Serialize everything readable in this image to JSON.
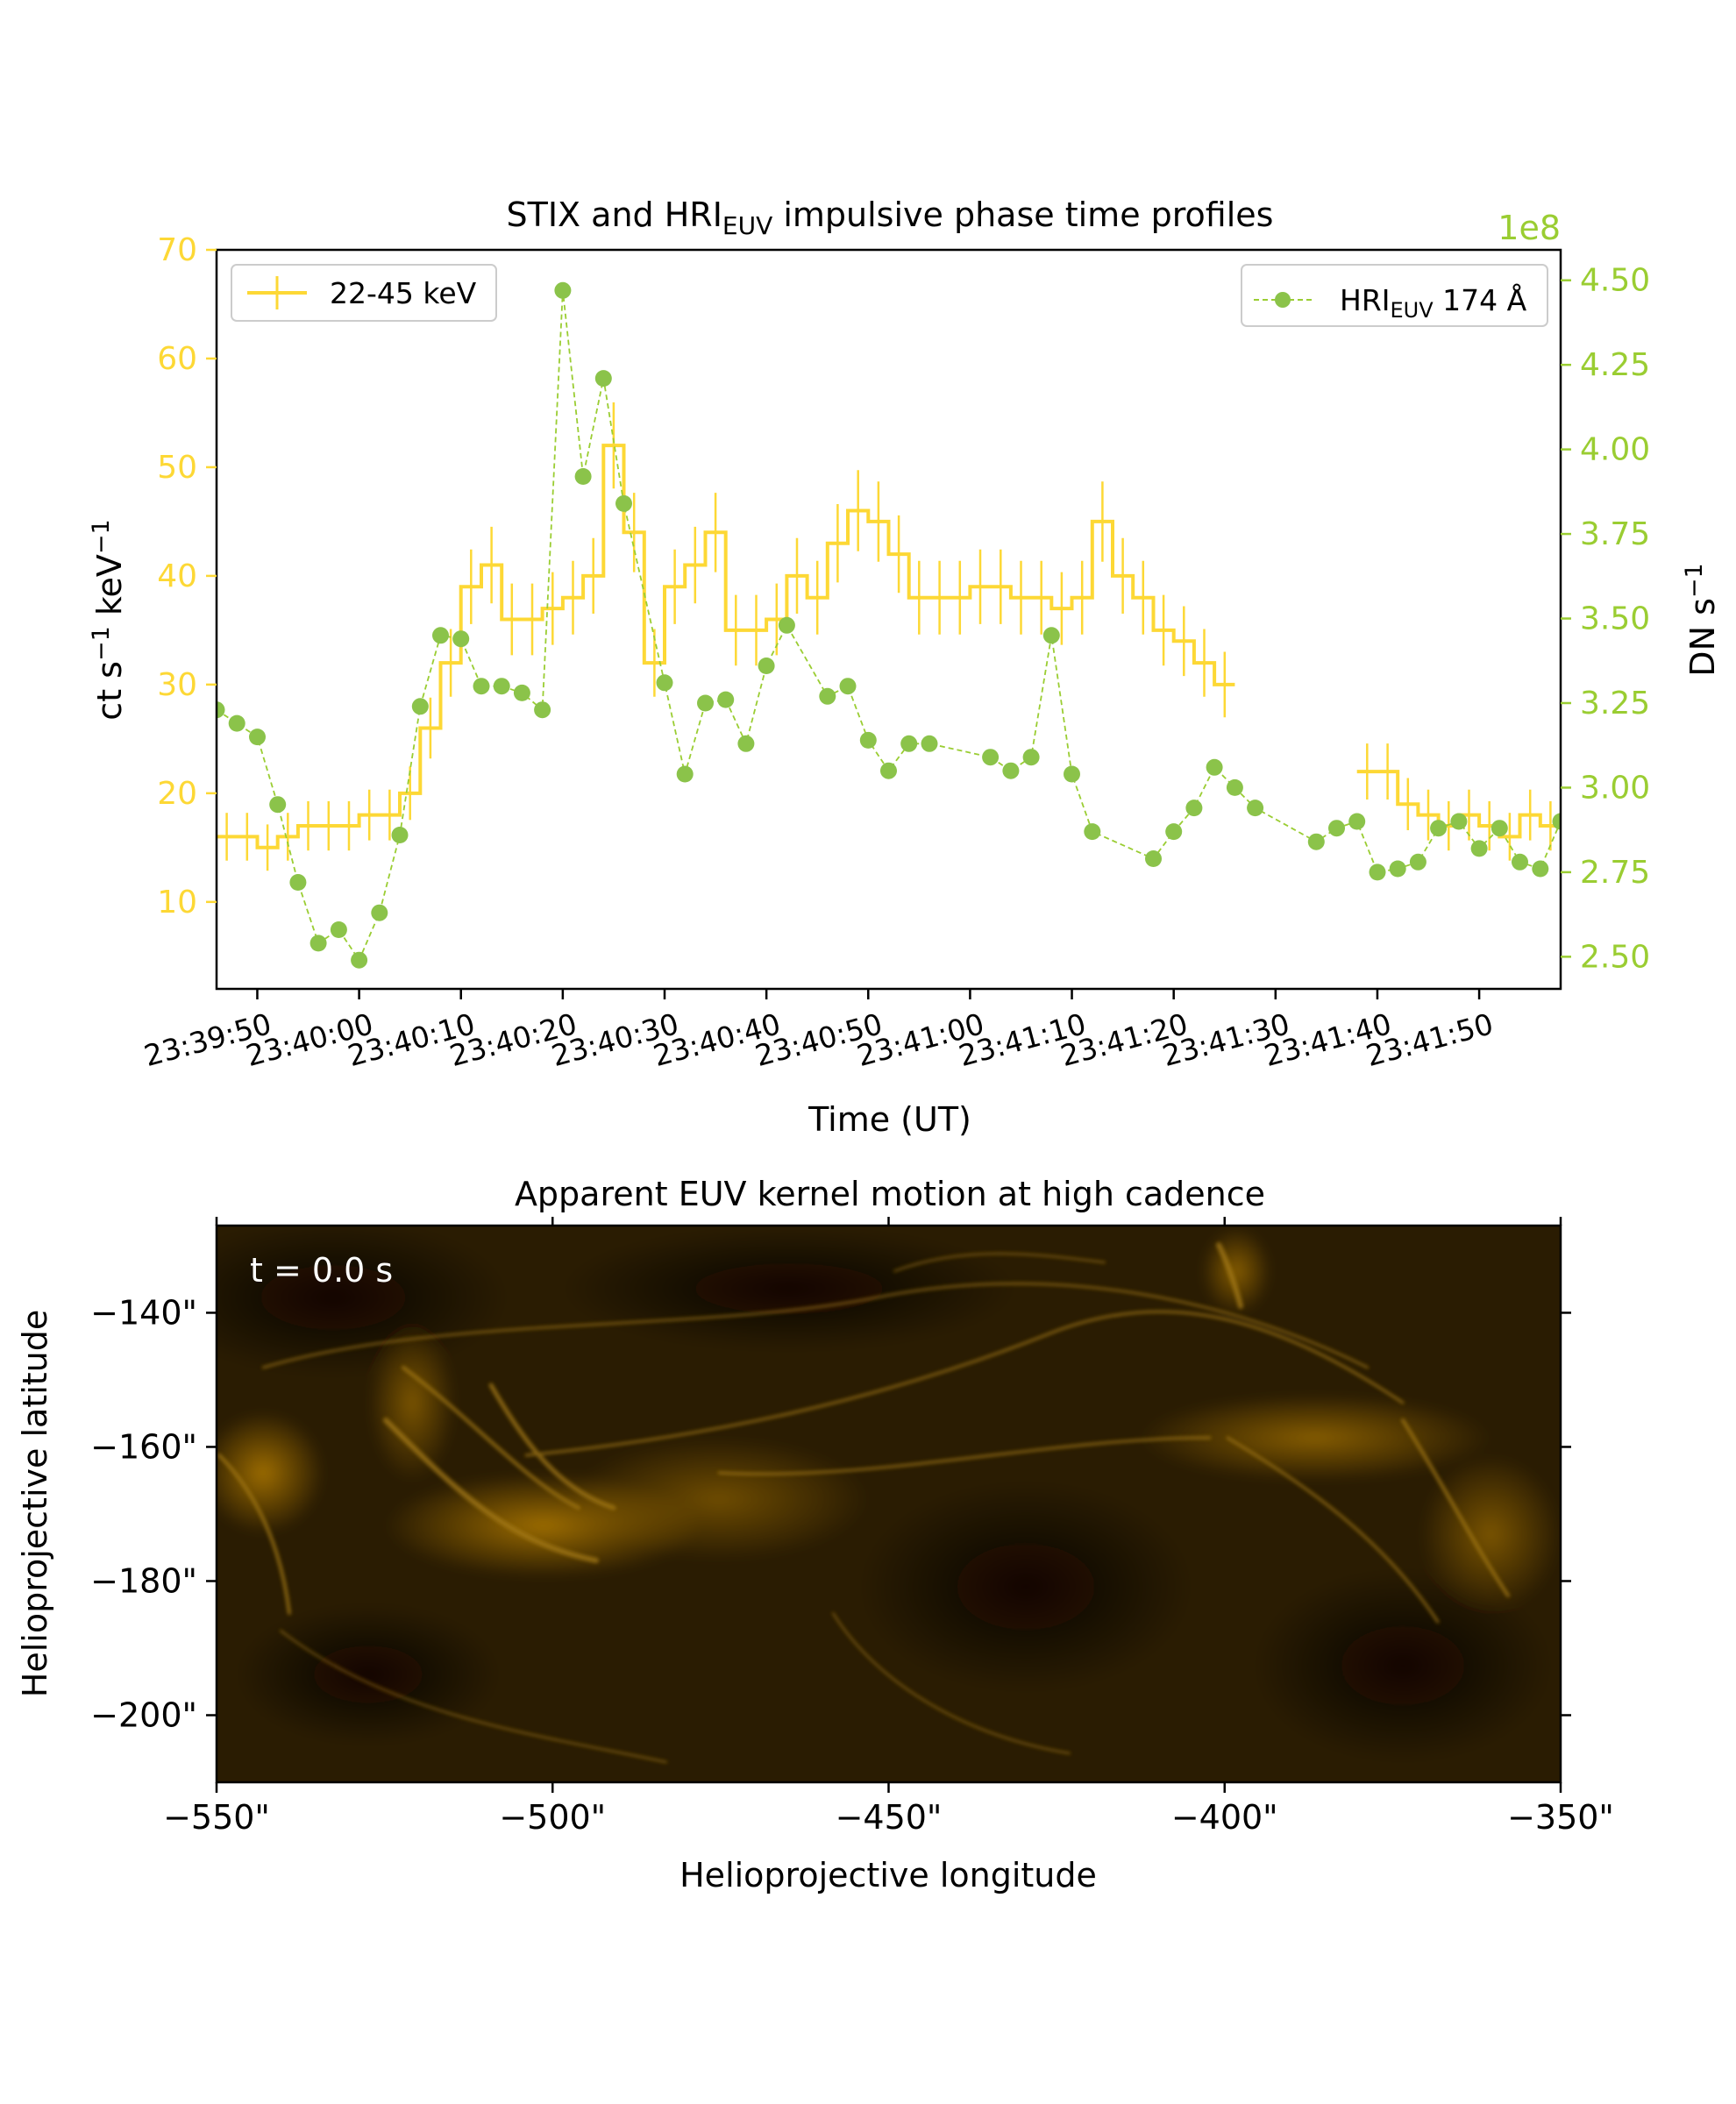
{
  "colors": {
    "stix": "#FDD835",
    "euv": "#9ACD32",
    "euv_dark": "#8BC34A",
    "axis": "#000000",
    "image_base": "#2a1c02"
  },
  "chart_data": [
    {
      "type": "line",
      "title_main": "STIX and HRI",
      "title_sub": "EUV",
      "title_rest": " impulsive phase time profiles",
      "xlabel": "Time (UT)",
      "ylabel_left": "ct s",
      "ylabel_left_sup1": "−1",
      "ylabel_left_mid": " keV",
      "ylabel_left_sup2": "−1",
      "ylabel_right": "DN s",
      "ylabel_right_sup": "−1",
      "right_offset_label": "1e8",
      "x_range_seconds": [
        "23:39:46",
        "23:41:58"
      ],
      "x_ticks": [
        "23:39:50",
        "23:40:00",
        "23:40:10",
        "23:40:20",
        "23:40:30",
        "23:40:40",
        "23:40:50",
        "23:41:00",
        "23:41:10",
        "23:41:20",
        "23:41:30",
        "23:41:40",
        "23:41:50"
      ],
      "ylim_left": [
        2,
        70
      ],
      "y_ticks_left": [
        "10",
        "20",
        "30",
        "40",
        "50",
        "60",
        "70"
      ],
      "ylim_right": [
        2.405,
        4.59
      ],
      "y_ticks_right": [
        "2.50",
        "2.75",
        "3.00",
        "3.25",
        "3.50",
        "3.75",
        "4.00",
        "4.25",
        "4.50"
      ],
      "legend_left": {
        "label": "22-45 keV",
        "position": "upper left"
      },
      "legend_right": {
        "label_main": "HRI",
        "label_sub": "EUV",
        "label_rest": " 174 Å",
        "position": "upper right"
      },
      "series": [
        {
          "name": "22-45 keV",
          "axis": "left",
          "style": "step with error bars",
          "segments": [
            {
              "t": [
                "23:39:46",
                "23:39:48",
                "23:39:50",
                "23:39:52",
                "23:39:54",
                "23:39:56",
                "23:39:58",
                "23:40:00",
                "23:40:02",
                "23:40:04",
                "23:40:06",
                "23:40:08",
                "23:40:10",
                "23:40:12",
                "23:40:14",
                "23:40:16",
                "23:40:18",
                "23:40:20",
                "23:40:22",
                "23:40:24",
                "23:40:26",
                "23:40:28",
                "23:40:30",
                "23:40:32",
                "23:40:34",
                "23:40:36",
                "23:40:38",
                "23:40:40",
                "23:40:42",
                "23:40:44",
                "23:40:46",
                "23:40:48",
                "23:40:50",
                "23:40:52",
                "23:40:54",
                "23:40:56",
                "23:40:58",
                "23:41:00",
                "23:41:02",
                "23:41:04",
                "23:41:06",
                "23:41:08",
                "23:41:10",
                "23:41:12",
                "23:41:14",
                "23:41:16",
                "23:41:18",
                "23:41:20",
                "23:41:22",
                "23:41:24"
              ],
              "y": [
                16,
                16,
                15,
                16,
                17,
                17,
                17,
                18,
                18,
                20,
                26,
                32,
                39,
                41,
                36,
                36,
                37,
                38,
                40,
                52,
                44,
                32,
                39,
                41,
                44,
                35,
                35,
                36,
                40,
                38,
                43,
                46,
                45,
                42,
                38,
                38,
                38,
                39,
                39,
                38,
                38,
                37,
                38,
                45,
                40,
                38,
                35,
                34,
                32,
                30
              ]
            },
            {
              "t": [
                "23:41:38",
                "23:41:40",
                "23:41:42",
                "23:41:44",
                "23:41:46",
                "23:41:48",
                "23:41:50",
                "23:41:52",
                "23:41:54",
                "23:41:56",
                "23:41:58"
              ],
              "y": [
                22,
                22,
                19,
                18,
                17,
                18,
                17,
                16,
                18,
                17,
                18
              ]
            }
          ]
        },
        {
          "name": "HRI_EUV 174 Å",
          "axis": "right",
          "style": "dashed line with circle markers",
          "t": [
            "23:39:46",
            "23:39:48",
            "23:39:50",
            "23:39:52",
            "23:39:54",
            "23:39:56",
            "23:39:58",
            "23:40:00",
            "23:40:02",
            "23:40:04",
            "23:40:06",
            "23:40:08",
            "23:40:10",
            "23:40:12",
            "23:40:14",
            "23:40:16",
            "23:40:18",
            "23:40:20",
            "23:40:22",
            "23:40:24",
            "23:40:26",
            "23:40:30",
            "23:40:32",
            "23:40:34",
            "23:40:36",
            "23:40:38",
            "23:40:40",
            "23:40:42",
            "23:40:46",
            "23:40:48",
            "23:40:50",
            "23:40:52",
            "23:40:54",
            "23:40:56",
            "23:41:02",
            "23:41:04",
            "23:41:06",
            "23:41:08",
            "23:41:10",
            "23:41:12",
            "23:41:18",
            "23:41:20",
            "23:41:22",
            "23:41:24",
            "23:41:26",
            "23:41:28",
            "23:41:34",
            "23:41:36",
            "23:41:38",
            "23:41:40",
            "23:41:42",
            "23:41:44",
            "23:41:46",
            "23:41:48",
            "23:41:50",
            "23:41:52",
            "23:41:54",
            "23:41:56",
            "23:41:58"
          ],
          "y": [
            3.23,
            3.19,
            3.15,
            2.95,
            2.72,
            2.54,
            2.58,
            2.49,
            2.63,
            2.86,
            3.24,
            3.45,
            3.44,
            3.3,
            3.3,
            3.28,
            3.23,
            4.47,
            3.92,
            4.21,
            3.84,
            3.31,
            3.04,
            3.25,
            3.26,
            3.13,
            3.36,
            3.48,
            3.27,
            3.3,
            3.14,
            3.05,
            3.13,
            3.13,
            3.09,
            3.05,
            3.09,
            3.45,
            3.04,
            2.87,
            2.79,
            2.87,
            2.94,
            3.06,
            3.0,
            2.94,
            2.84,
            2.88,
            2.9,
            2.75,
            2.76,
            2.78,
            2.88,
            2.9,
            2.82,
            2.88,
            2.78,
            2.76,
            2.9
          ]
        }
      ]
    },
    {
      "type": "heatmap",
      "title": "Apparent EUV kernel motion at high cadence",
      "xlabel": "Helioprojective longitude",
      "ylabel": "Helioprojective latitude",
      "annotation": "t = 0.0 s",
      "xlim": [
        -550,
        -350
      ],
      "ylim": [
        -210,
        -127
      ],
      "x_ticks": [
        "−550\"",
        "−500\"",
        "−450\"",
        "−400\"",
        "−350\""
      ],
      "y_ticks": [
        "−140\"",
        "−160\"",
        "−180\"",
        "−200\""
      ],
      "colormap": "dark gold solar EUV image"
    }
  ]
}
